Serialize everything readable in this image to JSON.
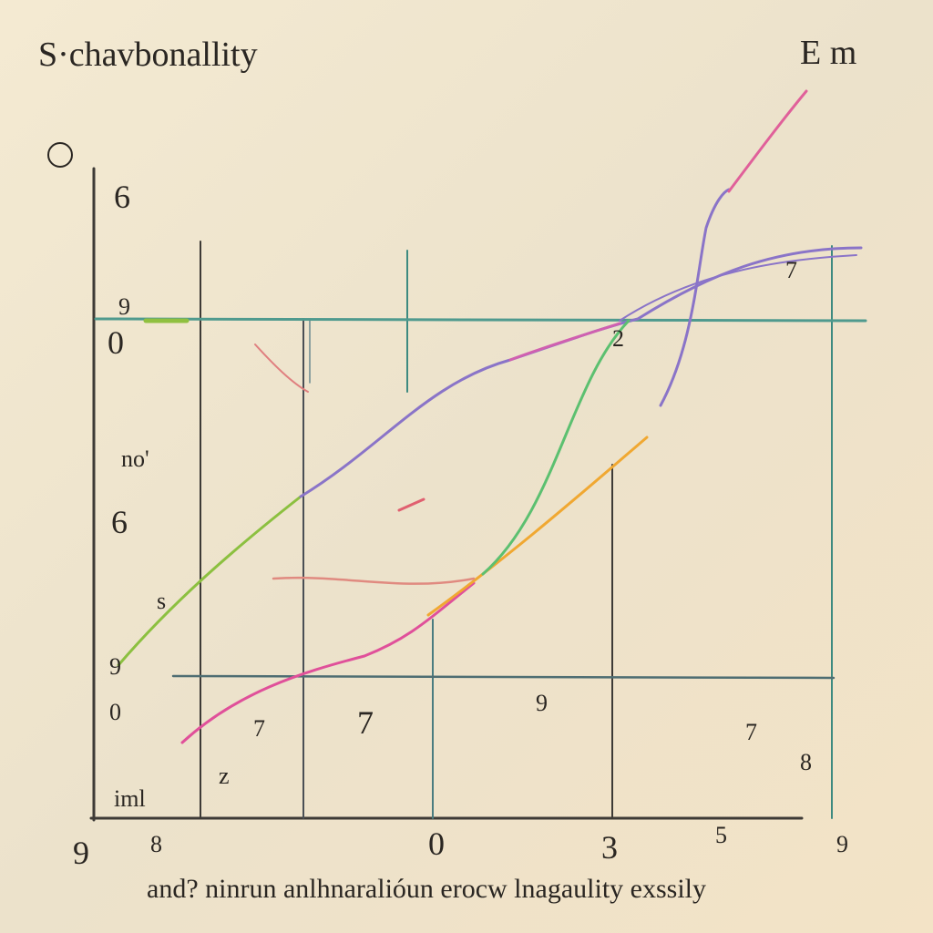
{
  "header": {
    "title": "S·chavbonallity",
    "corner": "E m"
  },
  "labels": [
    "6",
    "9",
    "0",
    "no'",
    "6",
    "s",
    "9",
    "0",
    "7",
    "7",
    "9",
    "7",
    "z",
    "iml",
    "9",
    "8",
    "0",
    "3",
    "5",
    "2",
    "7",
    "8",
    "9"
  ],
  "caption": "and? ninrun anlhnaralióun erocw lnagaulity exssily"
}
